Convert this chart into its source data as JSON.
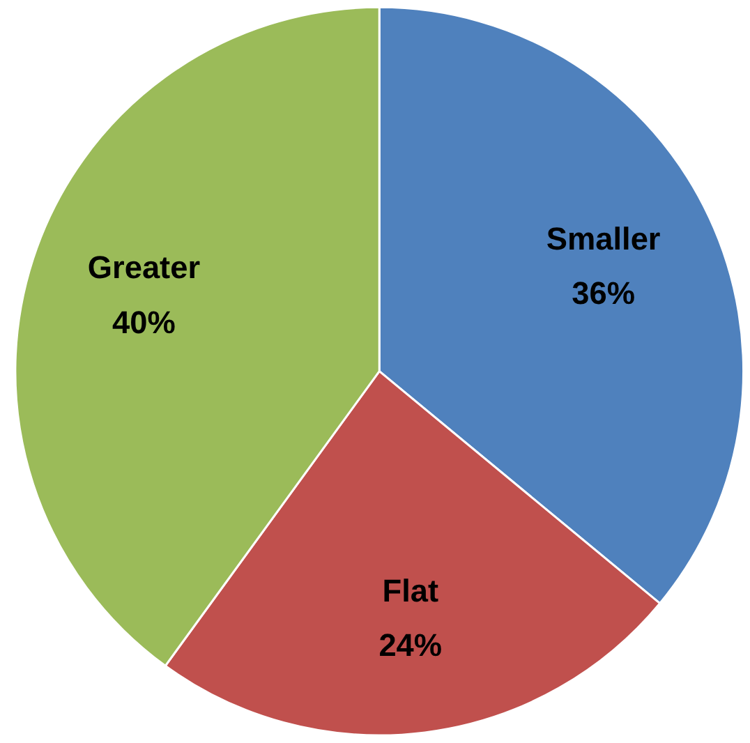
{
  "chart_data": {
    "type": "pie",
    "categories": [
      "Smaller",
      "Flat",
      "Greater"
    ],
    "values": [
      36,
      24,
      40
    ],
    "value_labels": [
      "36%",
      "24%",
      "40%"
    ],
    "colors": [
      "#4f81bd",
      "#c0504d",
      "#9bbb59"
    ]
  }
}
